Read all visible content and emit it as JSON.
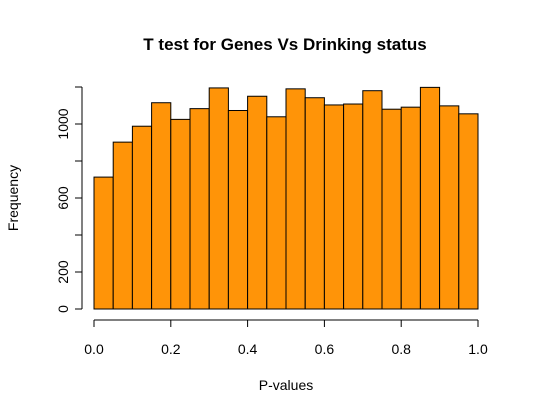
{
  "chart_data": {
    "type": "bar",
    "title": "T test for Genes  Vs Drinking status",
    "xlabel": "P-values",
    "ylabel": "Frequency",
    "bar_color": "#FF9408",
    "bin_width": 0.05,
    "xlim": [
      0.0,
      1.0
    ],
    "ylim": [
      0,
      1200
    ],
    "x_ticks": [
      0.0,
      0.2,
      0.4,
      0.6,
      0.8,
      1.0
    ],
    "x_tick_labels": [
      "0.0",
      "0.2",
      "0.4",
      "0.6",
      "0.8",
      "1.0"
    ],
    "y_ticks": [
      0,
      200,
      400,
      600,
      800,
      1000,
      1200
    ],
    "y_tick_labels": [
      "0",
      "200",
      "",
      "600",
      "",
      "1000",
      ""
    ],
    "bins": [
      {
        "start": 0.0,
        "end": 0.05,
        "value": 713
      },
      {
        "start": 0.05,
        "end": 0.1,
        "value": 902
      },
      {
        "start": 0.1,
        "end": 0.15,
        "value": 988
      },
      {
        "start": 0.15,
        "end": 0.2,
        "value": 1115
      },
      {
        "start": 0.2,
        "end": 0.25,
        "value": 1025
      },
      {
        "start": 0.25,
        "end": 0.3,
        "value": 1083
      },
      {
        "start": 0.3,
        "end": 0.35,
        "value": 1195
      },
      {
        "start": 0.35,
        "end": 0.4,
        "value": 1073
      },
      {
        "start": 0.4,
        "end": 0.45,
        "value": 1150
      },
      {
        "start": 0.45,
        "end": 0.5,
        "value": 1039
      },
      {
        "start": 0.5,
        "end": 0.55,
        "value": 1190
      },
      {
        "start": 0.55,
        "end": 0.6,
        "value": 1142
      },
      {
        "start": 0.6,
        "end": 0.65,
        "value": 1103
      },
      {
        "start": 0.65,
        "end": 0.7,
        "value": 1108
      },
      {
        "start": 0.7,
        "end": 0.75,
        "value": 1180
      },
      {
        "start": 0.75,
        "end": 0.8,
        "value": 1080
      },
      {
        "start": 0.8,
        "end": 0.85,
        "value": 1091
      },
      {
        "start": 0.85,
        "end": 0.9,
        "value": 1198
      },
      {
        "start": 0.9,
        "end": 0.95,
        "value": 1098
      },
      {
        "start": 0.95,
        "end": 1.0,
        "value": 1055
      }
    ]
  }
}
